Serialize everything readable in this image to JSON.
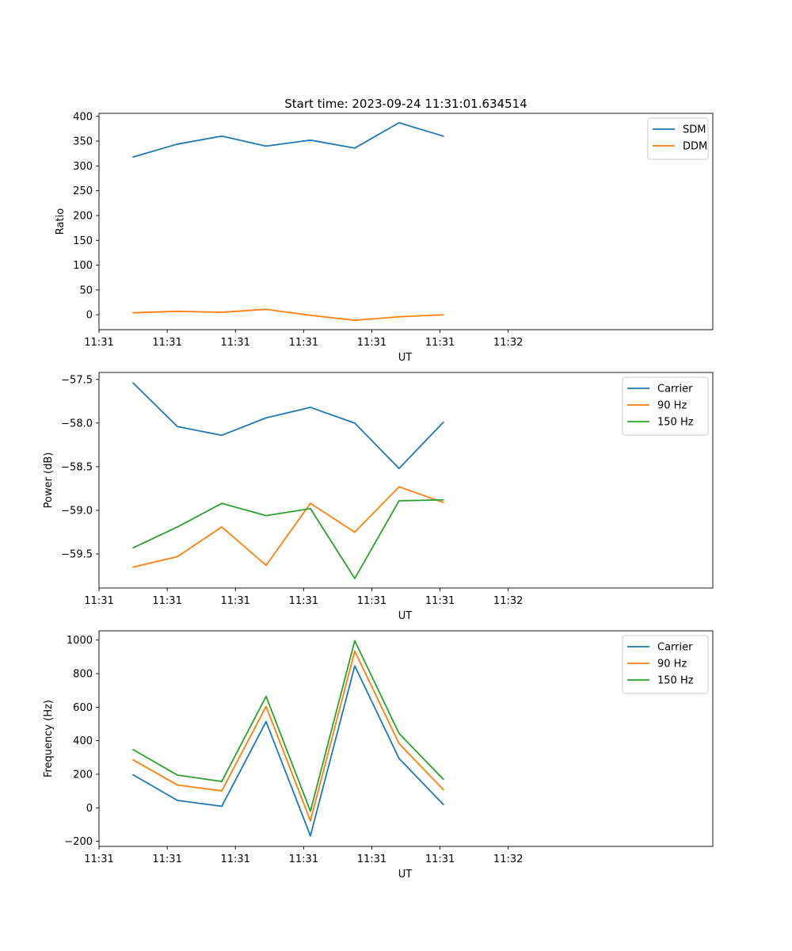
{
  "figure_title": "Start time: 2023-09-24 11:31:01.634514",
  "colors": {
    "blue": "#1f77b4",
    "orange": "#ff7f0e",
    "green": "#2ca02c"
  },
  "chart_data": [
    {
      "type": "line",
      "id": "ratio",
      "title": "Start time: 2023-09-24 11:31:01.634514",
      "xlabel": "UT",
      "ylabel": "Ratio",
      "xlim": [
        0.0,
        9.0
      ],
      "ylim": [
        -30,
        406
      ],
      "x": [
        0.5,
        1.15,
        1.8,
        2.45,
        3.1,
        3.75,
        4.4,
        5.05
      ],
      "x_tick_positions": [
        0.0,
        1.0,
        2.0,
        3.0,
        4.0,
        5.0,
        6.0
      ],
      "x_tick_labels": [
        "11:31",
        "11:31",
        "11:31",
        "11:31",
        "11:31",
        "11:31",
        "11:32"
      ],
      "y_ticks": [
        0,
        50,
        100,
        150,
        200,
        250,
        300,
        350,
        400
      ],
      "y_tick_labels": [
        "0",
        "50",
        "100",
        "150",
        "200",
        "250",
        "300",
        "350",
        "400"
      ],
      "legend_position": "top-right",
      "series": [
        {
          "name": "SDM",
          "color": "#1f77b4",
          "values": [
            318,
            344,
            360,
            340,
            352,
            336,
            387,
            360
          ]
        },
        {
          "name": "DDM",
          "color": "#ff7f0e",
          "values": [
            4,
            7,
            5,
            11,
            -1,
            -11,
            -4,
            0
          ]
        }
      ]
    },
    {
      "type": "line",
      "id": "power",
      "title": "",
      "xlabel": "UT",
      "ylabel": "Power (dB)",
      "xlim": [
        0.0,
        9.0
      ],
      "ylim": [
        -59.89,
        -57.42
      ],
      "x": [
        0.5,
        1.15,
        1.8,
        2.45,
        3.1,
        3.75,
        4.4,
        5.05
      ],
      "x_tick_positions": [
        0.0,
        1.0,
        2.0,
        3.0,
        4.0,
        5.0,
        6.0
      ],
      "x_tick_labels": [
        "11:31",
        "11:31",
        "11:31",
        "11:31",
        "11:31",
        "11:31",
        "11:32"
      ],
      "y_ticks": [
        -59.5,
        -59.0,
        -58.5,
        -58.0,
        -57.5
      ],
      "y_tick_labels": [
        "−59.5",
        "−59.0",
        "−58.5",
        "−58.0",
        "−57.5"
      ],
      "legend_position": "top-right",
      "series": [
        {
          "name": "Carrier",
          "color": "#1f77b4",
          "values": [
            -57.54,
            -58.04,
            -58.14,
            -57.94,
            -57.82,
            -58.0,
            -58.52,
            -57.99
          ]
        },
        {
          "name": "90 Hz",
          "color": "#ff7f0e",
          "values": [
            -59.65,
            -59.53,
            -59.19,
            -59.63,
            -58.92,
            -59.25,
            -58.73,
            -58.91
          ]
        },
        {
          "name": "150 Hz",
          "color": "#2ca02c",
          "values": [
            -59.43,
            -59.19,
            -58.92,
            -59.06,
            -58.98,
            -59.78,
            -58.89,
            -58.88
          ]
        }
      ]
    },
    {
      "type": "line",
      "id": "frequency",
      "title": "",
      "xlabel": "UT",
      "ylabel": "Frequency (Hz)",
      "xlim": [
        0.0,
        9.0
      ],
      "ylim": [
        -230,
        1055
      ],
      "x": [
        0.5,
        1.15,
        1.8,
        2.45,
        3.1,
        3.75,
        4.4,
        5.05
      ],
      "x_tick_positions": [
        0.0,
        1.0,
        2.0,
        3.0,
        4.0,
        5.0,
        6.0
      ],
      "x_tick_labels": [
        "11:31",
        "11:31",
        "11:31",
        "11:31",
        "11:31",
        "11:31",
        "11:32"
      ],
      "y_ticks": [
        -200,
        0,
        200,
        400,
        600,
        800,
        1000
      ],
      "y_tick_labels": [
        "−200",
        "0",
        "200",
        "400",
        "600",
        "800",
        "1000"
      ],
      "legend_position": "top-right",
      "series": [
        {
          "name": "Carrier",
          "color": "#1f77b4",
          "values": [
            197,
            44,
            9,
            514,
            -167,
            846,
            294,
            19
          ]
        },
        {
          "name": "90 Hz",
          "color": "#ff7f0e",
          "values": [
            286,
            136,
            101,
            604,
            -77,
            934,
            383,
            108
          ]
        },
        {
          "name": "150 Hz",
          "color": "#2ca02c",
          "values": [
            347,
            195,
            157,
            664,
            -20,
            996,
            443,
            170
          ]
        }
      ]
    }
  ]
}
